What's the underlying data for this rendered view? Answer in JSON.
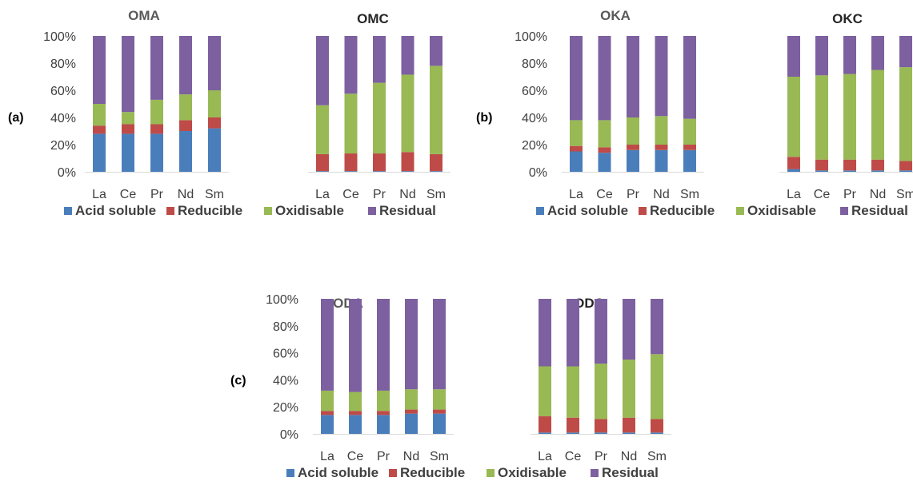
{
  "colors": {
    "acid_soluble": "#4a7ebb",
    "reducible": "#be4b48",
    "oxidisable": "#98b954",
    "residual": "#7d60a0"
  },
  "chart_data": [
    {
      "type": "bar",
      "stacked": true,
      "panel": "(a)",
      "title": "OMA",
      "categories": [
        "La",
        "Ce",
        "Pr",
        "Nd",
        "Sm"
      ],
      "ylim": [
        0,
        100
      ],
      "yticks": [
        "0%",
        "20%",
        "40%",
        "60%",
        "80%",
        "100%"
      ],
      "series": [
        {
          "name": "Acid soluble",
          "values": [
            28,
            28,
            28,
            30,
            32
          ]
        },
        {
          "name": "Reducible",
          "values": [
            6,
            7,
            7,
            8,
            8
          ]
        },
        {
          "name": "Oxidisable",
          "values": [
            16,
            9,
            18,
            19,
            20
          ]
        },
        {
          "name": "Residual",
          "values": [
            50,
            56,
            47,
            43,
            40
          ]
        }
      ]
    },
    {
      "type": "bar",
      "stacked": true,
      "panel": "(a)",
      "title": "OMC",
      "categories": [
        "La",
        "Ce",
        "Pr",
        "Nd",
        "Sm"
      ],
      "ylim": [
        0,
        100
      ],
      "series": [
        {
          "name": "Acid soluble",
          "values": [
            0.5,
            0.5,
            0.5,
            0.5,
            0.5
          ]
        },
        {
          "name": "Reducible",
          "values": [
            12.5,
            13,
            13,
            14,
            12.5
          ]
        },
        {
          "name": "Oxidisable",
          "values": [
            36,
            44,
            52,
            57,
            65
          ]
        },
        {
          "name": "Residual",
          "values": [
            51,
            42.5,
            34.5,
            28.5,
            22
          ]
        }
      ]
    },
    {
      "type": "bar",
      "stacked": true,
      "panel": "(b)",
      "title": "OKA",
      "categories": [
        "La",
        "Ce",
        "Pr",
        "Nd",
        "Sm"
      ],
      "ylim": [
        0,
        100
      ],
      "yticks": [
        "0%",
        "20%",
        "40%",
        "60%",
        "80%",
        "100%"
      ],
      "series": [
        {
          "name": "Acid soluble",
          "values": [
            15,
            14,
            16,
            16,
            16
          ]
        },
        {
          "name": "Reducible",
          "values": [
            4,
            4,
            4,
            4,
            4
          ]
        },
        {
          "name": "Oxidisable",
          "values": [
            19,
            20,
            20,
            21,
            19
          ]
        },
        {
          "name": "Residual",
          "values": [
            62,
            62,
            60,
            59,
            61
          ]
        }
      ]
    },
    {
      "type": "bar",
      "stacked": true,
      "panel": "(b)",
      "title": "OKC",
      "categories": [
        "La",
        "Ce",
        "Pr",
        "Nd",
        "Sm"
      ],
      "ylim": [
        0,
        100
      ],
      "series": [
        {
          "name": "Acid soluble",
          "values": [
            2,
            1,
            1,
            1,
            1
          ]
        },
        {
          "name": "Reducible",
          "values": [
            9,
            8,
            8,
            8,
            7
          ]
        },
        {
          "name": "Oxidisable",
          "values": [
            59,
            62,
            63,
            66,
            69
          ]
        },
        {
          "name": "Residual",
          "values": [
            30,
            29,
            28,
            25,
            23
          ]
        }
      ]
    },
    {
      "type": "bar",
      "stacked": true,
      "panel": "(c)",
      "title": "ODA",
      "categories": [
        "La",
        "Ce",
        "Pr",
        "Nd",
        "Sm"
      ],
      "ylim": [
        0,
        100
      ],
      "yticks": [
        "0%",
        "20%",
        "40%",
        "60%",
        "80%",
        "100%"
      ],
      "series": [
        {
          "name": "Acid soluble",
          "values": [
            14,
            14,
            14,
            15,
            15
          ]
        },
        {
          "name": "Reducible",
          "values": [
            3,
            3,
            3,
            3,
            3
          ]
        },
        {
          "name": "Oxidisable",
          "values": [
            15,
            14,
            15,
            15,
            15
          ]
        },
        {
          "name": "Residual",
          "values": [
            68,
            69,
            68,
            67,
            67
          ]
        }
      ]
    },
    {
      "type": "bar",
      "stacked": true,
      "panel": "(c)",
      "title": "ODC",
      "categories": [
        "La",
        "Ce",
        "Pr",
        "Nd",
        "Sm"
      ],
      "ylim": [
        0,
        100
      ],
      "series": [
        {
          "name": "Acid soluble",
          "values": [
            1,
            1,
            1,
            1,
            1
          ]
        },
        {
          "name": "Reducible",
          "values": [
            12,
            11,
            10,
            11,
            10
          ]
        },
        {
          "name": "Oxidisable",
          "values": [
            37,
            38,
            41,
            43,
            48
          ]
        },
        {
          "name": "Residual",
          "values": [
            50,
            50,
            48,
            45,
            41
          ]
        }
      ]
    }
  ],
  "legend": [
    "Acid soluble",
    "Reducible",
    "Oxidisable",
    "Residual"
  ]
}
